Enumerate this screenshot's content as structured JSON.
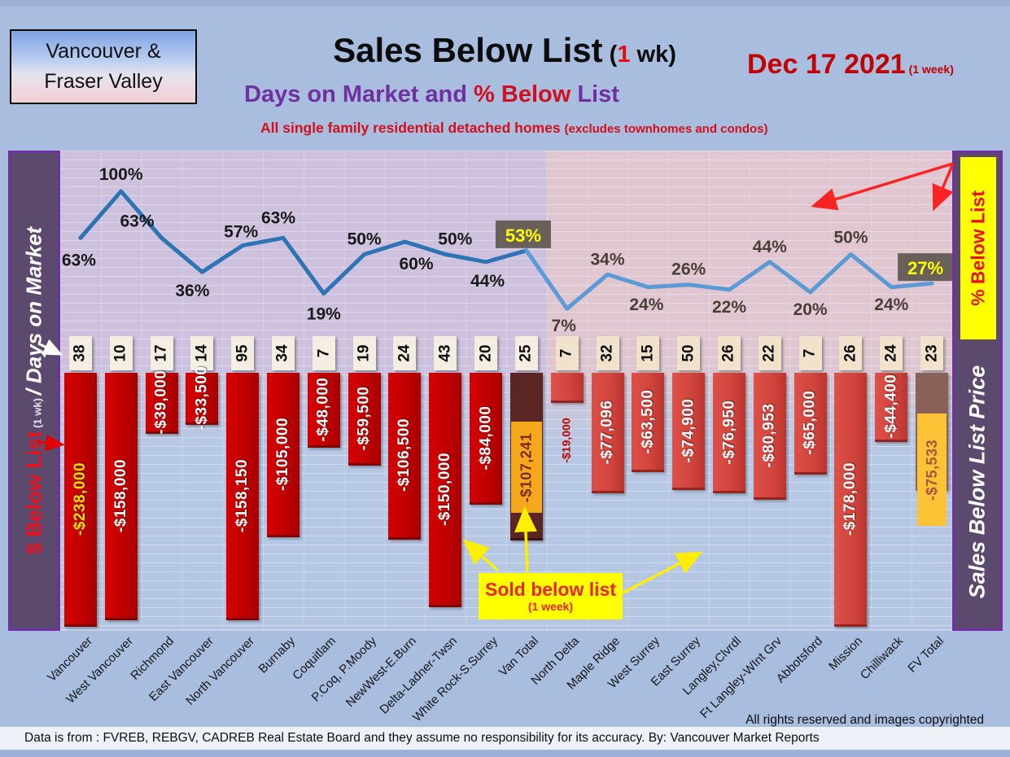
{
  "header": {
    "region_box": {
      "line1": "Vancouver &",
      "line2": "Fraser Valley"
    },
    "title": {
      "main": "Sales Below List",
      "paren_open": " (",
      "one": "1",
      "paren_rest": " wk)"
    },
    "subtitle": {
      "part1": "Days on Market and ",
      "part2": "% Below ",
      "part3": "List"
    },
    "tagline": {
      "main": "All single family residential detached homes ",
      "paren": "(excludes townhomes and condos)"
    },
    "date": {
      "main": "Dec 17  2021",
      "paren": " (1 week)"
    }
  },
  "left_sidebar": {
    "below_list": "$ Below List",
    "wk": " (1 wk) ",
    "days": "/ Days on Market"
  },
  "right_sidebar": {
    "pct_tab": "% Below List",
    "price": "Sales Below List Price"
  },
  "annotation": {
    "line1": "Sold below list",
    "line2": "(1 week)"
  },
  "footer": {
    "rights": "All rights reserved and  images copyrighted",
    "source": "Data is from : FVREB, REBGV, CADREB Real Estate Board and they assume no responsibility for its accuracy. By: Vancouver Market Reports"
  },
  "chart_data": {
    "type": "combo (line + bar)",
    "categories": [
      "Vancouver",
      "West Vancouver",
      "Richmond",
      "East Vancouver",
      "North Vancouver",
      "Burnaby",
      "Coquitlam",
      "P.Coq, P.Moody",
      "NewWest-E.Burn",
      "Delta-Ladner-Twsn",
      "White Rock-S.Surrey",
      "Van Total",
      "North Delta",
      "Maple Ridge",
      "West Surrey",
      "East Surrey",
      "Langley,Clvrdl",
      "Ft Langley-WInt Grv",
      "Abbotsford",
      "Mission",
      "Chilliwack",
      "FV Total"
    ],
    "series": [
      {
        "name": "% Below List (line)",
        "values": [
          63,
          100,
          63,
          36,
          57,
          63,
          19,
          50,
          60,
          50,
          44,
          53,
          7,
          34,
          24,
          26,
          22,
          44,
          20,
          50,
          24,
          27
        ]
      },
      {
        "name": "Days on Market",
        "values": [
          38,
          10,
          17,
          14,
          95,
          34,
          7,
          19,
          24,
          43,
          20,
          25,
          7,
          32,
          15,
          50,
          26,
          22,
          7,
          26,
          24,
          23
        ]
      },
      {
        "name": "$ Below List",
        "values": [
          -238000,
          -158000,
          -39000,
          -33500,
          -158150,
          -105000,
          -48000,
          -59500,
          -106500,
          -150000,
          -84000,
          -107241,
          -19000,
          -77096,
          -63500,
          -74900,
          -76950,
          -80953,
          -65000,
          -178000,
          -44400,
          -75533
        ]
      }
    ],
    "pct_labels": [
      "63%",
      "100%",
      "63%",
      "36%",
      "57%",
      "63%",
      "19%",
      "50%",
      "60%",
      "50%",
      "44%",
      "53%",
      "7%",
      "34%",
      "24%",
      "26%",
      "22%",
      "44%",
      "20%",
      "50%",
      "24%",
      "27%"
    ],
    "bar_labels": [
      "-$238,000",
      "-$158,000",
      "-$39,000",
      "-$33,500",
      "-$158,150",
      "-$105,000",
      "-$48,000",
      "-$59,500",
      "-$106,500",
      "-$150,000",
      "-$84,000",
      "-$107,241",
      "-$19,000",
      "-$77,096",
      "-$63,500",
      "-$74,900",
      "-$76,950",
      "-$80,953",
      "-$65,000",
      "-$178,000",
      "-$44,400",
      "-$75,533"
    ],
    "total_columns": [
      "Van Total",
      "FV Total"
    ],
    "highlighted_pct": {
      "Van Total": "53%",
      "FV Total": "27%"
    },
    "line_ylim": [
      0,
      100
    ],
    "grid": true,
    "legend": "none",
    "colors": {
      "bar_left": "#c00000",
      "bar_right": "#d2453e",
      "bar_van_total": "#5a2523",
      "bar_fv_total": "#8a6156",
      "total_label_bg_van": "#f6a81c",
      "total_label_bg_fv": "#fbc335",
      "line_left": "#2e74b5",
      "line_right": "#5b9bd5",
      "pct_highlight_bg": "#696159",
      "pct_highlight_text": "#ffff00",
      "vancouver_bar_text": "#ffe100",
      "bg_left_half": "#cdc1de",
      "bg_right_half": "#dfc6d0",
      "bg_lower": "#b4c6e2"
    }
  }
}
